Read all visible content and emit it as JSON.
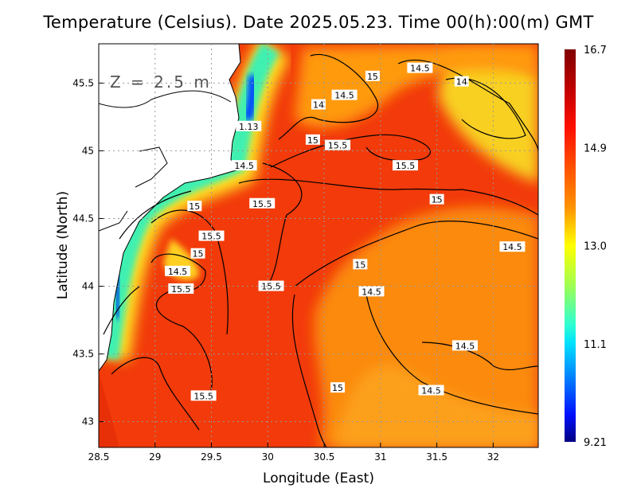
{
  "title": "Temperature (Celsius). Date 2025.05.23. Time 00(h):00(m) GMT",
  "depth_label": "Z = 2.5 m",
  "chart_data": {
    "type": "heatmap",
    "title": "Temperature (Celsius). Date 2025.05.23. Time 00(h):00(m) GMT",
    "xlabel": "Longitude (East)",
    "ylabel": "Latitude (North)",
    "xlim": [
      28.5,
      32.4
    ],
    "ylim": [
      42.81,
      45.79
    ],
    "xticks": [
      "28.5",
      "29",
      "29.5",
      "30",
      "30.5",
      "31",
      "31.5",
      "32"
    ],
    "yticks": [
      "43",
      "43.5",
      "44",
      "44.5",
      "45",
      "45.5"
    ],
    "grid": true,
    "colorbar": {
      "min": 9.21,
      "max": 16.7,
      "ticks": [
        "16.7",
        "14.9",
        "13.0",
        "11.1",
        "9.21"
      ]
    },
    "contour_labels": [
      {
        "text": "15",
        "lon": 30.93,
        "lat": 45.55
      },
      {
        "text": "14.5",
        "lon": 31.35,
        "lat": 45.61
      },
      {
        "text": "14",
        "lon": 31.72,
        "lat": 45.51
      },
      {
        "text": "14.5",
        "lon": 30.68,
        "lat": 45.41
      },
      {
        "text": "14",
        "lon": 30.45,
        "lat": 45.34
      },
      {
        "text": "1.13",
        "lon": 29.83,
        "lat": 45.18
      },
      {
        "text": "15",
        "lon": 30.4,
        "lat": 45.08
      },
      {
        "text": "15.5",
        "lon": 30.62,
        "lat": 45.04
      },
      {
        "text": "15.5",
        "lon": 31.22,
        "lat": 44.89
      },
      {
        "text": "14.5",
        "lon": 29.79,
        "lat": 44.89
      },
      {
        "text": "15",
        "lon": 31.5,
        "lat": 44.64
      },
      {
        "text": "15",
        "lon": 29.35,
        "lat": 44.59
      },
      {
        "text": "15.5",
        "lon": 29.95,
        "lat": 44.61
      },
      {
        "text": "15.5",
        "lon": 29.5,
        "lat": 44.37
      },
      {
        "text": "15",
        "lon": 29.38,
        "lat": 44.24
      },
      {
        "text": "14.5",
        "lon": 29.2,
        "lat": 44.11
      },
      {
        "text": "15.5",
        "lon": 29.23,
        "lat": 43.98
      },
      {
        "text": "15.5",
        "lon": 30.03,
        "lat": 44.0
      },
      {
        "text": "15",
        "lon": 30.82,
        "lat": 44.16
      },
      {
        "text": "14.5",
        "lon": 30.92,
        "lat": 43.96
      },
      {
        "text": "14.5",
        "lon": 32.17,
        "lat": 44.29
      },
      {
        "text": "14.5",
        "lon": 31.75,
        "lat": 43.56
      },
      {
        "text": "15",
        "lon": 30.62,
        "lat": 43.25
      },
      {
        "text": "14.5",
        "lon": 31.45,
        "lat": 43.23
      },
      {
        "text": "15.5",
        "lon": 29.43,
        "lat": 43.19
      }
    ]
  }
}
